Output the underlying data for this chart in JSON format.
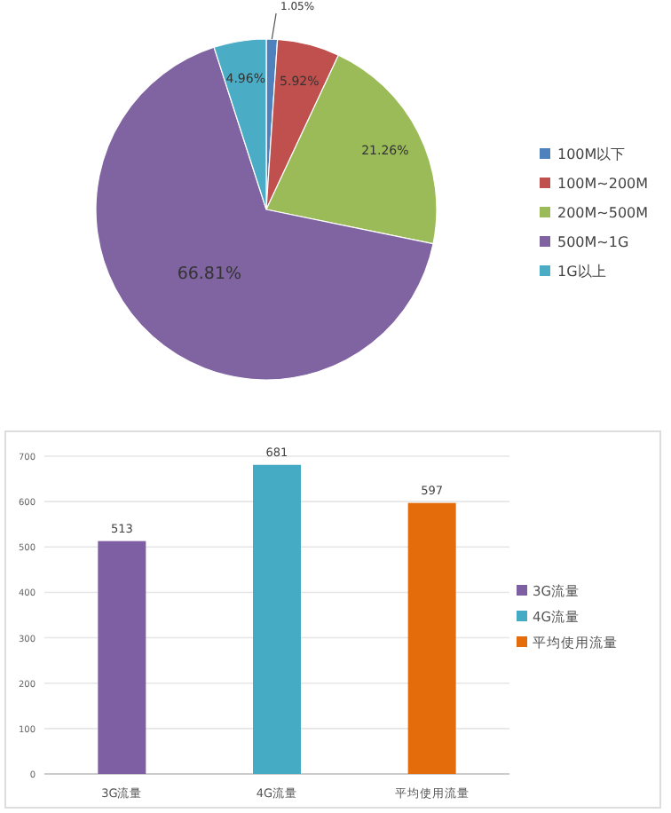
{
  "chart_data": [
    {
      "type": "pie",
      "categories": [
        "100M以下",
        "100M~200M",
        "200M~500M",
        "500M~1G",
        "1G以上"
      ],
      "values": [
        1.05,
        5.92,
        21.26,
        66.81,
        4.96
      ],
      "colors": [
        "#4f81bd",
        "#c0504d",
        "#9bbb59",
        "#8064a2",
        "#4bacc6"
      ],
      "value_labels": [
        "1.05%",
        "5.92%",
        "21.26%",
        "66.81%",
        "4.96%"
      ],
      "legend": "right"
    },
    {
      "type": "bar",
      "categories": [
        "3G流量",
        "4G流量",
        "平均使用流量"
      ],
      "series": [
        {
          "name": "3G流量",
          "color": "#7e5fa3",
          "values": [
            513,
            null,
            null
          ]
        },
        {
          "name": "4G流量",
          "color": "#45aac4",
          "values": [
            null,
            681,
            null
          ]
        },
        {
          "name": "平均使用流量",
          "color": "#e46c0a",
          "values": [
            null,
            null,
            597
          ]
        }
      ],
      "ylim": [
        0,
        700
      ],
      "yticks": [
        0,
        100,
        200,
        300,
        400,
        500,
        600,
        700
      ],
      "grid": "y",
      "data_labels": true,
      "legend": "right"
    }
  ]
}
